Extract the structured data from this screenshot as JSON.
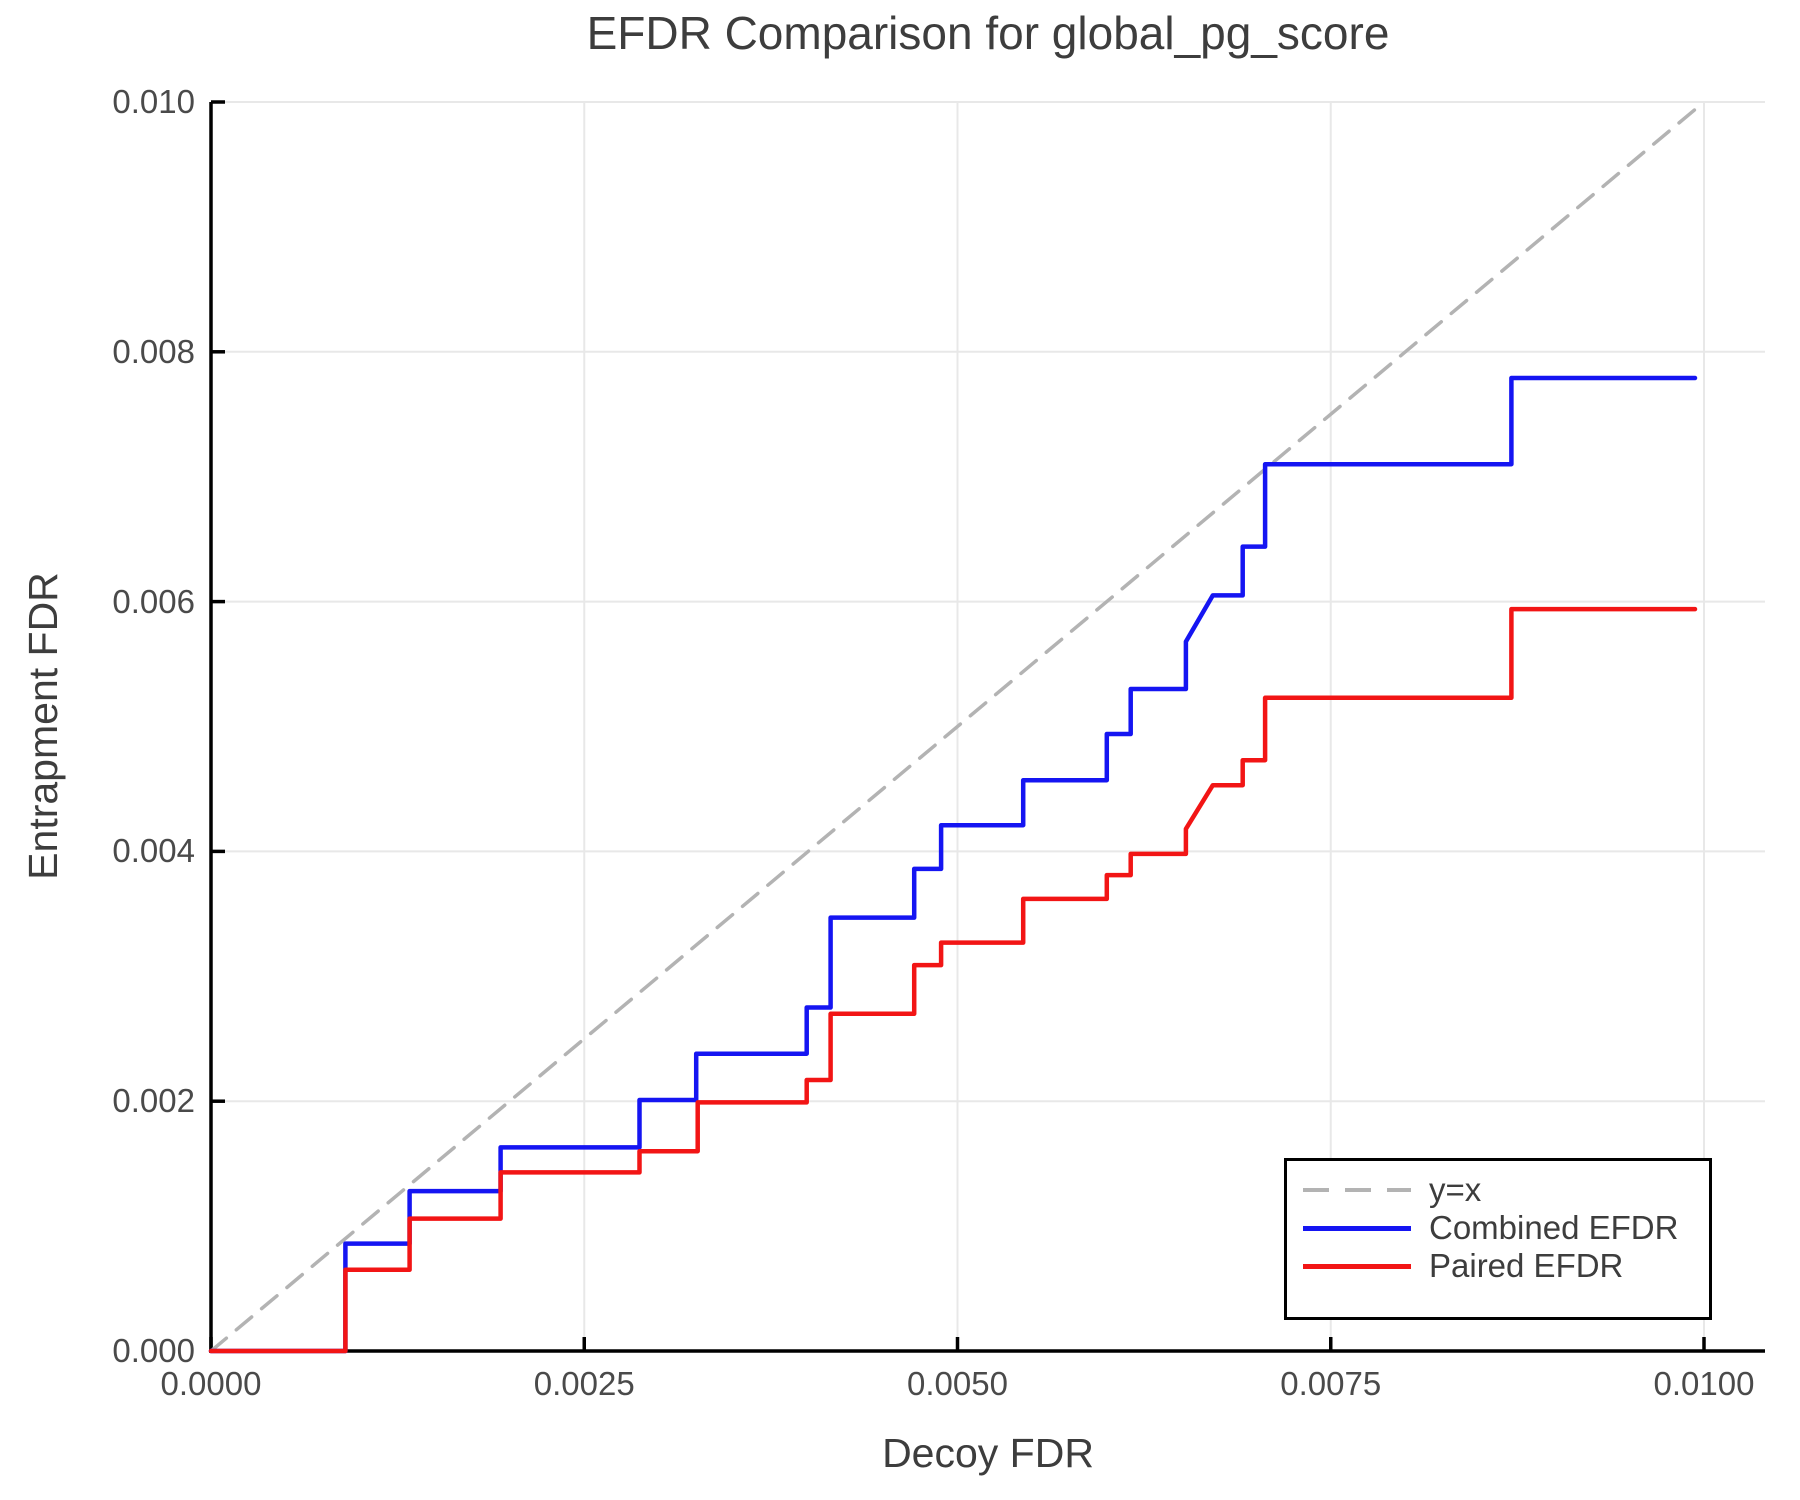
{
  "chart_data": {
    "type": "line",
    "title": "EFDR Comparison for global_pg_score",
    "xlabel": "Decoy FDR",
    "ylabel": "Entrapment FDR",
    "xlim": [
      0.0,
      0.0104
    ],
    "ylim": [
      0.0,
      0.01
    ],
    "grid": true,
    "legend_location": "lower right",
    "xticks": [
      {
        "value": 0.0,
        "label": "0.0000"
      },
      {
        "value": 0.0025,
        "label": "0.0025"
      },
      {
        "value": 0.005,
        "label": "0.0050"
      },
      {
        "value": 0.0075,
        "label": "0.0075"
      },
      {
        "value": 0.01,
        "label": "0.0100"
      }
    ],
    "yticks": [
      {
        "value": 0.0,
        "label": "0.000"
      },
      {
        "value": 0.002,
        "label": "0.002"
      },
      {
        "value": 0.004,
        "label": "0.004"
      },
      {
        "value": 0.006,
        "label": "0.006"
      },
      {
        "value": 0.008,
        "label": "0.008"
      },
      {
        "value": 0.01,
        "label": "0.010"
      }
    ],
    "series": [
      {
        "name": "y=x",
        "color": "#b3b3b3",
        "style": "dashed",
        "width": 3.5,
        "points": [
          [
            0.0,
            0.0
          ],
          [
            0.01,
            0.01
          ]
        ]
      },
      {
        "name": "Combined EFDR",
        "color": "#1515f2",
        "style": "solid",
        "width": 4.5,
        "points": [
          [
            0.0,
            0.0
          ],
          [
            0.0009,
            0.0
          ],
          [
            0.0009,
            0.00086
          ],
          [
            0.00133,
            0.00086
          ],
          [
            0.00133,
            0.00128
          ],
          [
            0.00194,
            0.00128
          ],
          [
            0.00194,
            0.00163
          ],
          [
            0.00287,
            0.00163
          ],
          [
            0.00287,
            0.00201
          ],
          [
            0.00325,
            0.00201
          ],
          [
            0.00325,
            0.00238
          ],
          [
            0.00399,
            0.00238
          ],
          [
            0.00399,
            0.00275
          ],
          [
            0.00415,
            0.00275
          ],
          [
            0.00415,
            0.00347
          ],
          [
            0.00471,
            0.00347
          ],
          [
            0.00471,
            0.00386
          ],
          [
            0.00489,
            0.00386
          ],
          [
            0.00489,
            0.00421
          ],
          [
            0.00544,
            0.00421
          ],
          [
            0.00544,
            0.00457
          ],
          [
            0.006,
            0.00457
          ],
          [
            0.006,
            0.00494
          ],
          [
            0.00616,
            0.00494
          ],
          [
            0.00616,
            0.0053
          ],
          [
            0.00653,
            0.0053
          ],
          [
            0.00653,
            0.00568
          ],
          [
            0.00671,
            0.00605
          ],
          [
            0.00691,
            0.00605
          ],
          [
            0.00691,
            0.00644
          ],
          [
            0.00706,
            0.00644
          ],
          [
            0.00706,
            0.0071
          ],
          [
            0.00871,
            0.0071
          ],
          [
            0.00871,
            0.00779
          ],
          [
            0.00994,
            0.00779
          ]
        ]
      },
      {
        "name": "Paired EFDR",
        "color": "#f21515",
        "style": "solid",
        "width": 4.5,
        "points": [
          [
            0.0,
            0.0
          ],
          [
            0.0009,
            0.0
          ],
          [
            0.0009,
            0.00065
          ],
          [
            0.00133,
            0.00065
          ],
          [
            0.00133,
            0.00106
          ],
          [
            0.00194,
            0.00106
          ],
          [
            0.00194,
            0.00143
          ],
          [
            0.00287,
            0.00143
          ],
          [
            0.00287,
            0.0016
          ],
          [
            0.00326,
            0.0016
          ],
          [
            0.00326,
            0.00199
          ],
          [
            0.00399,
            0.00199
          ],
          [
            0.00399,
            0.00217
          ],
          [
            0.00415,
            0.00217
          ],
          [
            0.00415,
            0.0027
          ],
          [
            0.00471,
            0.0027
          ],
          [
            0.00471,
            0.00309
          ],
          [
            0.00489,
            0.00309
          ],
          [
            0.00489,
            0.00327
          ],
          [
            0.00544,
            0.00327
          ],
          [
            0.00544,
            0.00362
          ],
          [
            0.006,
            0.00362
          ],
          [
            0.006,
            0.00381
          ],
          [
            0.00616,
            0.00381
          ],
          [
            0.00616,
            0.00398
          ],
          [
            0.00653,
            0.00398
          ],
          [
            0.00653,
            0.00418
          ],
          [
            0.00671,
            0.00453
          ],
          [
            0.00691,
            0.00453
          ],
          [
            0.00691,
            0.00473
          ],
          [
            0.00706,
            0.00473
          ],
          [
            0.00706,
            0.00523
          ],
          [
            0.00871,
            0.00523
          ],
          [
            0.00871,
            0.00594
          ],
          [
            0.00994,
            0.00594
          ]
        ]
      }
    ]
  },
  "legend": {
    "entries": [
      {
        "label": "y=x",
        "color": "#b3b3b3",
        "style": "dashed"
      },
      {
        "label": "Combined EFDR",
        "color": "#1515f2",
        "style": "solid"
      },
      {
        "label": "Paired EFDR",
        "color": "#f21515",
        "style": "solid"
      }
    ]
  },
  "colors": {
    "grid": "#e8e8e8",
    "spine": "#000000",
    "title_text": "#3d3d3d",
    "tick_text": "#4a4a4a"
  }
}
